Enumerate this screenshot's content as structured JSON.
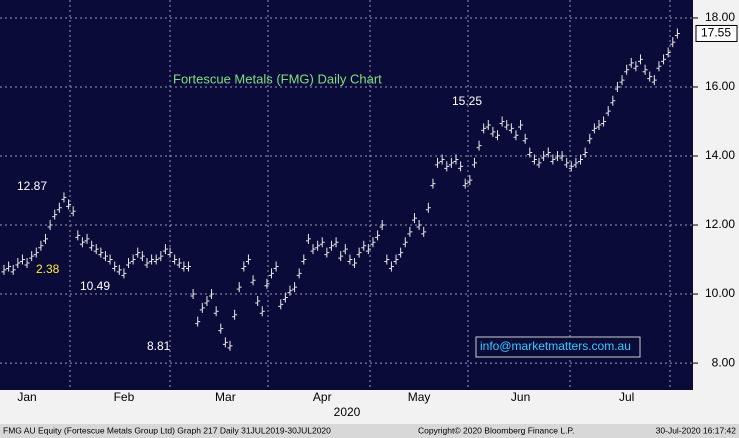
{
  "chart_data": {
    "type": "price-bars",
    "title": "Fortescue Metals (FMG) Daily Chart",
    "xlabel": "2020",
    "categories": [
      null,
      null,
      null,
      null,
      null,
      "Jan",
      null,
      null,
      null,
      null,
      null,
      null,
      null,
      null,
      null,
      null,
      null,
      null,
      null,
      null,
      null,
      null,
      null,
      null,
      null,
      null,
      "Feb",
      null,
      null,
      null,
      null,
      null,
      null,
      null,
      null,
      null,
      null,
      null,
      null,
      null,
      null,
      null,
      null,
      null,
      null,
      null,
      null,
      null,
      "Mar",
      null,
      null,
      null,
      null,
      null,
      null,
      null,
      null,
      null,
      null,
      null,
      null,
      null,
      null,
      null,
      null,
      null,
      null,
      null,
      null,
      "Apr",
      null,
      null,
      null,
      null,
      null,
      null,
      null,
      null,
      null,
      null,
      null,
      null,
      null,
      null,
      null,
      null,
      null,
      null,
      null,
      null,
      "May",
      null,
      null,
      null,
      null,
      null,
      null,
      null,
      null,
      null,
      null,
      null,
      null,
      null,
      null,
      null,
      null,
      null,
      null,
      null,
      null,
      null,
      "Jun",
      null,
      null,
      null,
      null,
      null,
      null,
      null,
      null,
      null,
      null,
      null,
      null,
      null,
      null,
      null,
      null,
      null,
      null,
      null,
      null,
      null,
      null,
      "Jul",
      null,
      null,
      null,
      null,
      null,
      null,
      null,
      null,
      null,
      null,
      null
    ],
    "values": [
      10.7,
      10.8,
      10.7,
      10.9,
      11.0,
      10.9,
      11.1,
      11.2,
      11.4,
      11.6,
      12.0,
      12.3,
      12.5,
      12.8,
      12.6,
      12.4,
      11.7,
      11.5,
      11.6,
      11.4,
      11.3,
      11.2,
      11.1,
      11.0,
      10.8,
      10.7,
      10.6,
      10.9,
      11.0,
      11.2,
      11.1,
      10.9,
      11.0,
      11.0,
      11.1,
      11.3,
      11.2,
      11.0,
      10.9,
      10.8,
      10.8,
      10.0,
      9.2,
      9.6,
      9.8,
      10.0,
      9.5,
      9.0,
      8.6,
      8.5,
      9.4,
      10.2,
      10.8,
      11.0,
      10.4,
      9.8,
      9.5,
      10.3,
      10.6,
      10.8,
      9.7,
      9.9,
      10.1,
      10.2,
      10.6,
      11.0,
      11.6,
      11.3,
      11.4,
      11.5,
      11.2,
      11.4,
      11.5,
      11.1,
      11.3,
      11.0,
      10.9,
      11.2,
      11.4,
      11.3,
      11.5,
      11.7,
      12.0,
      11.0,
      10.8,
      11.0,
      11.2,
      11.5,
      11.8,
      12.2,
      12.0,
      11.8,
      12.5,
      13.2,
      13.8,
      13.9,
      13.7,
      13.8,
      13.9,
      13.7,
      13.2,
      13.3,
      13.8,
      14.3,
      14.8,
      14.9,
      14.7,
      14.6,
      15.0,
      14.9,
      14.8,
      14.6,
      14.9,
      14.5,
      14.1,
      13.9,
      13.8,
      14.0,
      14.1,
      13.9,
      14.0,
      14.0,
      13.8,
      13.7,
      13.8,
      13.9,
      14.1,
      14.5,
      14.8,
      14.9,
      15.0,
      15.3,
      15.6,
      16.0,
      16.2,
      16.5,
      16.7,
      16.6,
      16.8,
      16.5,
      16.3,
      16.2,
      16.6,
      16.8,
      17.0,
      17.3,
      17.55
    ],
    "color": "#e8e8e8",
    "ylim": [
      7.22,
      18.52
    ],
    "yticks": [
      {
        "value": 8,
        "label": "8.00"
      },
      {
        "value": 10,
        "label": "10.00"
      },
      {
        "value": 12,
        "label": "12.00"
      },
      {
        "value": 14,
        "label": "14.00"
      },
      {
        "value": 16,
        "label": "16.00"
      },
      {
        "value": 18,
        "label": "18.00"
      }
    ],
    "grid": true,
    "annotations": [
      "12.87",
      "2.38",
      "10.49",
      "8.81",
      "15.25"
    ],
    "watermark": "info@marketmatters.com.au",
    "footer": {
      "left": "FMG AU Equity (Fortescue Metals Group Ltd) Graph 217  Daily 31JUL2019-30JUL2020",
      "center": "Copyright© 2020 Bloomberg Finance L.P.",
      "right": "30-Jul-2020 16:17:42"
    }
  }
}
